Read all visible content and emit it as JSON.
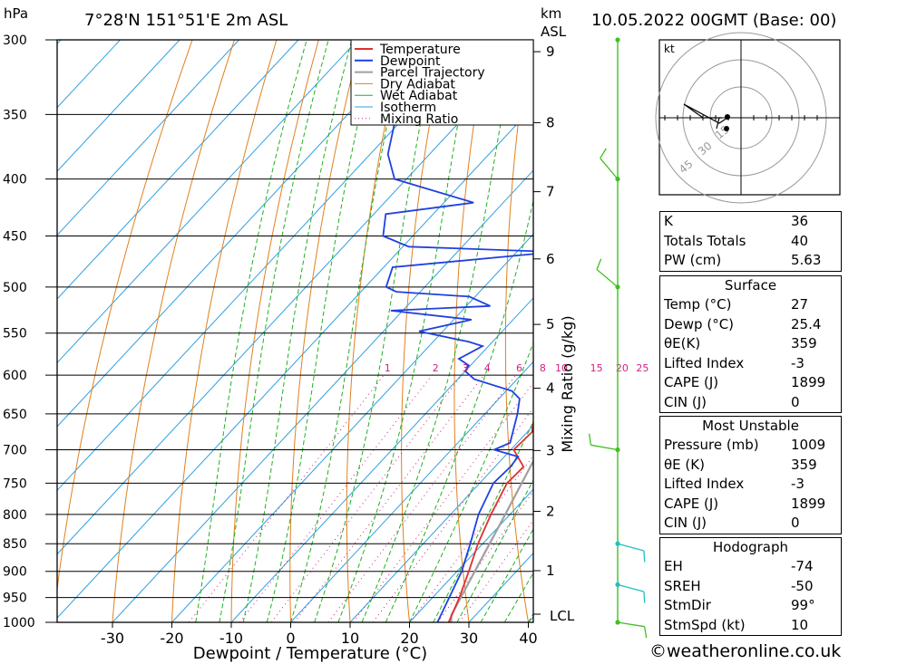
{
  "header": {
    "unit_hpa": "hPa",
    "location": "7°28'N  151°51'E  2m  ASL",
    "unit_km": "km",
    "unit_asl": "ASL",
    "datetime": "10.05.2022  00GMT  (Base: 00)"
  },
  "chart_data": {
    "type": "skew-t log-p",
    "xlabel": "Dewpoint / Temperature (°C)",
    "y2label": "Mixing Ratio (g/kg)",
    "pressure_levels": [
      300,
      350,
      400,
      450,
      500,
      550,
      600,
      650,
      700,
      750,
      800,
      850,
      900,
      950,
      1000
    ],
    "x_ticks": [
      -30,
      -20,
      -10,
      0,
      10,
      20,
      30,
      40
    ],
    "km_ticks": [
      1,
      2,
      3,
      4,
      5,
      6,
      7,
      8,
      9
    ],
    "lcl_label": "LCL",
    "mixing_ratio_labels": [
      "1",
      "2",
      "3",
      "4",
      "6",
      "8",
      "10",
      "15",
      "20",
      "25"
    ],
    "legend": [
      "Temperature",
      "Dewpoint",
      "Parcel Trajectory",
      "Dry Adiabat",
      "Wet Adiabat",
      "Isotherm",
      "Mixing Ratio"
    ],
    "colors": {
      "temperature": "#e03030",
      "dewpoint": "#2040e0",
      "parcel": "#a0a0a0",
      "dry_adiabat": "#e08020",
      "wet_adiabat": "#20b020",
      "isotherm": "#30a0e0",
      "mixing_ratio": "#d02080",
      "wind": "#40c020",
      "wind_low": "#20c0c0"
    },
    "temperature_profile": [
      {
        "p": 1000,
        "t": 26.6
      },
      {
        "p": 950,
        "t": 24.5
      },
      {
        "p": 900,
        "t": 22.0
      },
      {
        "p": 850,
        "t": 19.2
      },
      {
        "p": 800,
        "t": 16.8
      },
      {
        "p": 750,
        "t": 14.6
      },
      {
        "p": 725,
        "t": 14.8
      },
      {
        "p": 700,
        "t": 10.5
      },
      {
        "p": 675,
        "t": 10.8
      },
      {
        "p": 650,
        "t": 8.4
      },
      {
        "p": 620,
        "t": 5.5
      },
      {
        "p": 600,
        "t": 3.2
      },
      {
        "p": 580,
        "t": 2.6
      },
      {
        "p": 560,
        "t": 1.2
      },
      {
        "p": 540,
        "t": -1.2
      },
      {
        "p": 520,
        "t": -3.2
      },
      {
        "p": 500,
        "t": -6.5
      },
      {
        "p": 485,
        "t": -8.5
      },
      {
        "p": 470,
        "t": -12.0
      },
      {
        "p": 450,
        "t": -12.8
      },
      {
        "p": 430,
        "t": -16.5
      },
      {
        "p": 400,
        "t": -22.0
      },
      {
        "p": 380,
        "t": -26.5
      },
      {
        "p": 360,
        "t": -31.5
      }
    ],
    "dewpoint_profile": [
      {
        "p": 1000,
        "t": 24.7
      },
      {
        "p": 950,
        "t": 22.8
      },
      {
        "p": 900,
        "t": 20.8
      },
      {
        "p": 850,
        "t": 17.9
      },
      {
        "p": 800,
        "t": 14.7
      },
      {
        "p": 750,
        "t": 12.3
      },
      {
        "p": 725,
        "t": 12.6
      },
      {
        "p": 710,
        "t": 12.3
      },
      {
        "p": 700,
        "t": 7.2
      },
      {
        "p": 690,
        "t": 8.8
      },
      {
        "p": 650,
        "t": 5.5
      },
      {
        "p": 630,
        "t": 3.5
      },
      {
        "p": 620,
        "t": 1.0
      },
      {
        "p": 605,
        "t": -7.2
      },
      {
        "p": 595,
        "t": -10.0
      },
      {
        "p": 588,
        "t": -10.3
      },
      {
        "p": 580,
        "t": -13.0
      },
      {
        "p": 565,
        "t": -11.0
      },
      {
        "p": 560,
        "t": -14.0
      },
      {
        "p": 548,
        "t": -24.0
      },
      {
        "p": 535,
        "t": -17.0
      },
      {
        "p": 525,
        "t": -32.0
      },
      {
        "p": 520,
        "t": -16.0
      },
      {
        "p": 510,
        "t": -21.0
      },
      {
        "p": 505,
        "t": -34.0
      },
      {
        "p": 500,
        "t": -36.5
      },
      {
        "p": 480,
        "t": -38.5
      },
      {
        "p": 465,
        "t": -13.5
      },
      {
        "p": 460,
        "t": -39.0
      },
      {
        "p": 450,
        "t": -45.0
      },
      {
        "p": 430,
        "t": -48.0
      },
      {
        "p": 420,
        "t": -35.0
      },
      {
        "p": 400,
        "t": -52.0
      },
      {
        "p": 380,
        "t": -57.0
      },
      {
        "p": 340,
        "t": -63.5
      },
      {
        "p": 320,
        "t": -53.0
      },
      {
        "p": 303,
        "t": -69.0
      },
      {
        "p": 300,
        "t": -73.0
      }
    ],
    "parcel_profile": [
      {
        "p": 1000,
        "t": 27.0
      },
      {
        "p": 985,
        "t": 25.9
      },
      {
        "p": 900,
        "t": 23.0
      },
      {
        "p": 800,
        "t": 19.2
      },
      {
        "p": 700,
        "t": 14.8
      },
      {
        "p": 600,
        "t": 8.6
      },
      {
        "p": 500,
        "t": -0.6
      },
      {
        "p": 450,
        "t": -6.3
      },
      {
        "p": 400,
        "t": -13.0
      },
      {
        "p": 360,
        "t": -20.0
      }
    ],
    "wind_barbs": [
      {
        "p": 300,
        "kind": "calm"
      },
      {
        "p": 400,
        "dir": 320,
        "kt": 10
      },
      {
        "p": 500,
        "dir": 310,
        "kt": 10
      },
      {
        "p": 700,
        "dir": 280,
        "kt": 10
      },
      {
        "p": 850,
        "dir": 105,
        "kt": 10
      },
      {
        "p": 925,
        "dir": 105,
        "kt": 10
      },
      {
        "p": 1000,
        "dir": 99,
        "kt": 10
      }
    ],
    "hodograph": {
      "unit": "kt",
      "ring_labels": [
        "15",
        "30",
        "45"
      ],
      "points": [
        [
          0,
          0
        ],
        [
          -3,
          -2
        ],
        [
          -16,
          5
        ],
        [
          -9,
          0
        ],
        [
          -2,
          0
        ],
        [
          -3,
          0
        ],
        [
          -4,
          -4
        ]
      ]
    }
  },
  "indices": {
    "rows": [
      {
        "label": "K",
        "value": "36"
      },
      {
        "label": "Totals Totals",
        "value": "40"
      },
      {
        "label": "PW (cm)",
        "value": "5.63"
      }
    ]
  },
  "surface": {
    "title": "Surface",
    "rows": [
      {
        "label": "Temp (°C)",
        "value": "27"
      },
      {
        "label": "Dewp (°C)",
        "value": "25.4"
      },
      {
        "label": "θE(K)",
        "value": "359"
      },
      {
        "label": "Lifted Index",
        "value": "-3"
      },
      {
        "label": "CAPE (J)",
        "value": "1899"
      },
      {
        "label": "CIN (J)",
        "value": "0"
      }
    ]
  },
  "most_unstable": {
    "title": "Most Unstable",
    "rows": [
      {
        "label": "Pressure (mb)",
        "value": "1009"
      },
      {
        "label": "θE (K)",
        "value": "359"
      },
      {
        "label": "Lifted Index",
        "value": "-3"
      },
      {
        "label": "CAPE (J)",
        "value": "1899"
      },
      {
        "label": "CIN (J)",
        "value": "0"
      }
    ]
  },
  "hodograph_table": {
    "title": "Hodograph",
    "rows": [
      {
        "label": "EH",
        "value": "-74"
      },
      {
        "label": "SREH",
        "value": "-50"
      },
      {
        "label": "StmDir",
        "value": "99°"
      },
      {
        "label": "StmSpd (kt)",
        "value": "10"
      }
    ]
  },
  "footer": "©weatheronline.co.uk"
}
